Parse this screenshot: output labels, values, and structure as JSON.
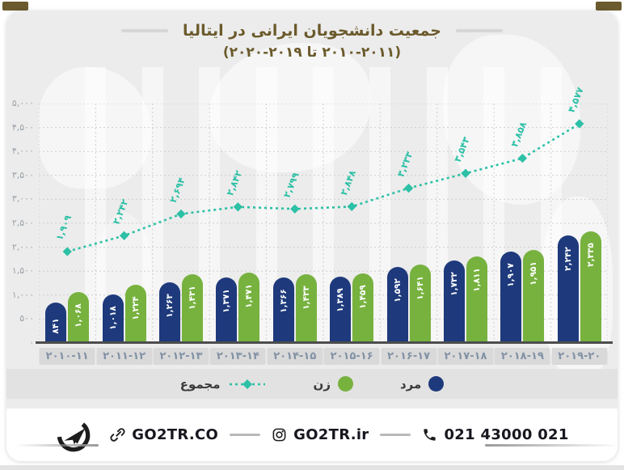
{
  "page": {
    "title_line1": "جمعیت دانشجویان ایرانی در ایتالیا",
    "title_line2": "(۲۰۱۰-۲۰۱۱ تا ۲۰۱۹-۲۰۲۰)",
    "title_color": "#6b5a2b"
  },
  "chart_data": {
    "type": "bar",
    "title": "جمعیت دانشجویان ایرانی در ایتالیا (۲۰۱۰-۲۰۱۱ تا ۲۰۱۹-۲۰۲۰)",
    "categories": [
      "2010-11",
      "2011-12",
      "2012-13",
      "2013-14",
      "2014-15",
      "2015-16",
      "2016-17",
      "2017-18",
      "2018-19",
      "2019-20"
    ],
    "categories_fa": [
      "۲۰۱۰-۱۱",
      "۲۰۱۱-۱۲",
      "۲۰۱۲-۱۳",
      "۲۰۱۳-۱۴",
      "۲۰۱۴-۱۵",
      "۲۰۱۵-۱۶",
      "۲۰۱۶-۱۷",
      "۲۰۱۷-۱۸",
      "۲۰۱۸-۱۹",
      "۲۰۱۹-۲۰"
    ],
    "ylim": [
      0,
      5000
    ],
    "y_ticks": [
      5000,
      4500,
      4000,
      3500,
      3000,
      2500,
      2000,
      1500,
      1000,
      500,
      0
    ],
    "y_ticks_fa": [
      "۵,۰۰۰",
      "۴,۵۰۰",
      "۴,۰۰۰",
      "۳,۵۰۰",
      "۳,۰۰۰",
      "۲,۵۰۰",
      "۲,۰۰۰",
      "۱,۵۰۰",
      "۱,۰۰۰",
      "۵۰۰",
      "۰"
    ],
    "grid": true,
    "legend_position": "bottom",
    "series": [
      {
        "name": "مرد",
        "name_en": "men",
        "kind": "bar",
        "color": "#1e3a7c",
        "values": [
          841,
          1018,
          1263,
          1371,
          1366,
          1389,
          1592,
          1732,
          1907,
          2242
        ],
        "labels_fa": [
          "۸۴۱",
          "۱,۰۱۸",
          "۱,۲۶۳",
          "۱,۳۷۱",
          "۱,۳۶۶",
          "۱,۳۸۹",
          "۱,۵۹۲",
          "۱,۷۳۲",
          "۱,۹۰۷",
          "۲,۲۴۲"
        ]
      },
      {
        "name": "زن",
        "name_en": "women",
        "kind": "bar",
        "color": "#77b23f",
        "values": [
          1068,
          1224,
          1431,
          1471,
          1433,
          1459,
          1641,
          1811,
          1951,
          2335
        ],
        "labels_fa": [
          "۱,۰۶۸",
          "۱,۲۲۴",
          "۱,۴۳۱",
          "۱,۴۷۱",
          "۱,۴۳۳",
          "۱,۴۵۹",
          "۱,۶۴۱",
          "۱,۸۱۱",
          "۱,۹۵۱",
          "۲,۳۳۵"
        ]
      },
      {
        "name": "مجموع",
        "name_en": "total",
        "kind": "line",
        "color": "#2cc0a6",
        "values": [
          1909,
          2242,
          2694,
          2842,
          2799,
          2848,
          3233,
          3543,
          3858,
          4577
        ],
        "labels_fa": [
          "۱,۹۰۹",
          "۲,۲۴۲",
          "۲,۶۹۴",
          "۲,۸۴۲",
          "۲,۷۹۹",
          "۲,۸۴۸",
          "۳,۲۳۳",
          "۳,۵۴۳",
          "۳,۸۵۸",
          "۴,۵۷۷"
        ]
      }
    ]
  },
  "legend": {
    "items": [
      {
        "label": "مجموع",
        "marker": "dashed-line",
        "color": "#2cc0a6"
      },
      {
        "label": "زن",
        "marker": "circle",
        "color": "#77b23f"
      },
      {
        "label": "مرد",
        "marker": "circle",
        "color": "#1e3a7c"
      }
    ]
  },
  "footer": {
    "logo": "GO2TR",
    "website": "GO2TR.CO",
    "instagram": "GO2TR.ir",
    "phone": "021 43000 021"
  }
}
